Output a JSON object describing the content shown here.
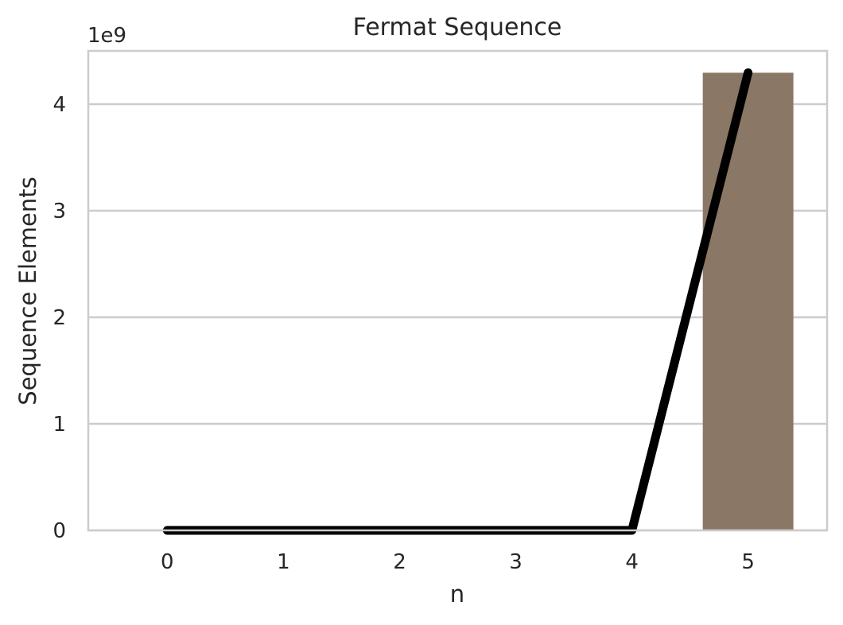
{
  "chart_data": {
    "type": "bar",
    "title": "Fermat Sequence",
    "xlabel": "n",
    "ylabel": "Sequence Elements",
    "categories": [
      "0",
      "1",
      "2",
      "3",
      "4",
      "5"
    ],
    "bar_values": [
      3,
      5,
      17,
      257,
      65537,
      4294967297
    ],
    "line_values": [
      3,
      5,
      17,
      257,
      65537,
      4294967297
    ],
    "ylim": [
      0,
      4500000000
    ],
    "yticks": [
      0,
      1000000000,
      2000000000,
      3000000000,
      4000000000
    ],
    "ytick_labels": [
      "0",
      "1",
      "2",
      "3",
      "4"
    ],
    "offset_label": "1e9",
    "grid": "horizontal",
    "colors": {
      "bar": "#8b7765",
      "line": "#000000",
      "grid": "#cccccc",
      "spine": "#cccccc",
      "text": "#262626"
    }
  }
}
